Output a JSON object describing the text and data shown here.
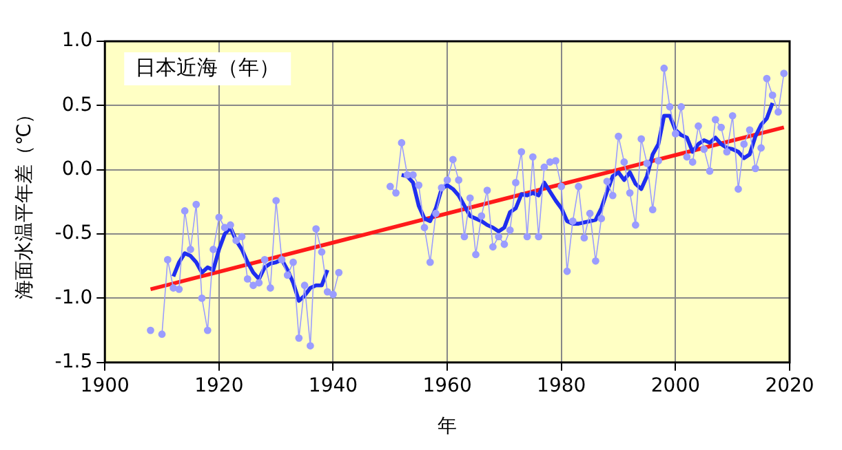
{
  "chart_data": {
    "type": "line",
    "xlabel": "年",
    "ylabel": "海面水温平年差（℃）",
    "annotations": [
      "日本近海（年）"
    ],
    "xlim": [
      1900,
      2020
    ],
    "xticks": [
      1900,
      1920,
      1940,
      1960,
      1980,
      2000,
      2020
    ],
    "ylim": [
      -1.5,
      1.0
    ],
    "yticks": [
      {
        "value": -1.5,
        "label": "-1.5"
      },
      {
        "value": -1.0,
        "label": "-1.0"
      },
      {
        "value": -0.5,
        "label": "-0.5"
      },
      {
        "value": 0,
        "label": "0.0"
      },
      {
        "value": 0.5,
        "label": "0.5"
      },
      {
        "value": 1.0,
        "label": "1.0"
      }
    ],
    "grid": true,
    "legend": false,
    "series": [
      {
        "color": "#9a9cff",
        "marker": "circle",
        "x": [
          1908,
          1909,
          1910,
          1911,
          1912,
          1913,
          1914,
          1915,
          1916,
          1917,
          1918,
          1919,
          1920,
          1921,
          1922,
          1923,
          1924,
          1925,
          1926,
          1927,
          1928,
          1929,
          1930,
          1931,
          1932,
          1933,
          1934,
          1935,
          1936,
          1937,
          1938,
          1939,
          1940,
          1941,
          1942,
          1943,
          1944,
          1945,
          1946,
          1947,
          1948,
          1949,
          1950,
          1951,
          1952,
          1953,
          1954,
          1955,
          1956,
          1957,
          1958,
          1959,
          1960,
          1961,
          1962,
          1963,
          1964,
          1965,
          1966,
          1967,
          1968,
          1969,
          1970,
          1971,
          1972,
          1973,
          1974,
          1975,
          1976,
          1977,
          1978,
          1979,
          1980,
          1981,
          1982,
          1983,
          1984,
          1985,
          1986,
          1987,
          1988,
          1989,
          1990,
          1991,
          1992,
          1993,
          1994,
          1995,
          1996,
          1997,
          1998,
          1999,
          2000,
          2001,
          2002,
          2003,
          2004,
          2005,
          2006,
          2007,
          2008,
          2009,
          2010,
          2011,
          2012,
          2013,
          2014,
          2015,
          2016,
          2017,
          2018,
          2019
        ],
        "values": [
          -1.25,
          null,
          -1.28,
          -0.7,
          -0.92,
          -0.93,
          -0.32,
          -0.62,
          -0.27,
          -1.0,
          -1.25,
          -0.62,
          -0.37,
          -0.45,
          -0.43,
          -0.55,
          -0.52,
          -0.85,
          -0.9,
          -0.88,
          -0.7,
          -0.92,
          -0.24,
          -0.7,
          -0.82,
          -0.72,
          -1.31,
          -0.9,
          -1.37,
          -0.46,
          -0.64,
          -0.95,
          -0.97,
          -0.8,
          null,
          null,
          null,
          null,
          null,
          null,
          null,
          null,
          -0.13,
          -0.18,
          0.21,
          -0.04,
          -0.04,
          -0.12,
          -0.45,
          -0.72,
          -0.34,
          -0.14,
          -0.08,
          0.08,
          -0.08,
          -0.52,
          -0.22,
          -0.66,
          -0.36,
          -0.16,
          -0.6,
          -0.52,
          -0.58,
          -0.47,
          -0.1,
          0.14,
          -0.52,
          0.1,
          -0.52,
          0.02,
          0.06,
          0.07,
          -0.13,
          -0.79,
          -0.4,
          -0.13,
          -0.53,
          -0.34,
          -0.71,
          -0.38,
          -0.09,
          -0.2,
          0.26,
          0.06,
          -0.18,
          -0.43,
          0.24,
          0.05,
          -0.31,
          0.07,
          0.79,
          0.49,
          0.28,
          0.49,
          0.1,
          0.06,
          0.34,
          0.16,
          -0.01,
          0.39,
          0.33,
          0.14,
          0.42,
          -0.15,
          0.2,
          0.31,
          0.01,
          0.17,
          0.71,
          0.58,
          0.45,
          0.75
        ]
      },
      {
        "color": "#1f2ef0",
        "x": [
          1912,
          1913,
          1914,
          1915,
          1916,
          1917,
          1918,
          1919,
          1920,
          1921,
          1922,
          1923,
          1924,
          1925,
          1926,
          1927,
          1928,
          1929,
          1930,
          1931,
          1932,
          1933,
          1934,
          1935,
          1936,
          1937,
          1938,
          1939,
          1946,
          1952,
          1953,
          1954,
          1955,
          1956,
          1957,
          1958,
          1959,
          1960,
          1961,
          1962,
          1963,
          1964,
          1965,
          1966,
          1967,
          1968,
          1969,
          1970,
          1971,
          1972,
          1973,
          1974,
          1975,
          1976,
          1977,
          1978,
          1979,
          1980,
          1981,
          1982,
          1983,
          1984,
          1985,
          1986,
          1987,
          1988,
          1989,
          1990,
          1991,
          1992,
          1993,
          1994,
          1995,
          1996,
          1997,
          1998,
          1999,
          2000,
          2001,
          2002,
          2003,
          2004,
          2005,
          2006,
          2007,
          2008,
          2009,
          2010,
          2011,
          2012,
          2013,
          2014,
          2015,
          2016,
          2017
        ],
        "values": [
          -0.83,
          -0.72,
          -0.65,
          -0.67,
          -0.72,
          -0.8,
          -0.76,
          -0.78,
          -0.62,
          -0.5,
          -0.45,
          -0.55,
          -0.62,
          -0.72,
          -0.8,
          -0.85,
          -0.76,
          -0.73,
          -0.72,
          -0.7,
          -0.78,
          -0.88,
          -1.02,
          -0.98,
          -0.92,
          -0.9,
          -0.9,
          -0.78,
          null,
          -0.04,
          -0.05,
          -0.1,
          -0.28,
          -0.38,
          -0.4,
          -0.3,
          -0.15,
          -0.12,
          -0.15,
          -0.2,
          -0.28,
          -0.36,
          -0.38,
          -0.4,
          -0.43,
          -0.45,
          -0.48,
          -0.45,
          -0.33,
          -0.3,
          -0.19,
          -0.2,
          -0.18,
          -0.2,
          -0.1,
          -0.17,
          -0.24,
          -0.3,
          -0.4,
          -0.42,
          -0.42,
          -0.41,
          -0.4,
          -0.39,
          -0.3,
          -0.17,
          -0.05,
          -0.02,
          -0.08,
          -0.02,
          -0.11,
          -0.15,
          -0.05,
          0.12,
          0.2,
          0.42,
          0.42,
          0.31,
          0.27,
          0.25,
          0.14,
          0.2,
          0.23,
          0.21,
          0.25,
          0.2,
          0.17,
          0.16,
          0.14,
          0.09,
          0.12,
          0.26,
          0.35,
          0.4,
          0.52
        ]
      },
      {
        "color": "#ff1a1a",
        "x": [
          1908,
          2019
        ],
        "values": [
          -0.93,
          0.33
        ]
      }
    ]
  }
}
